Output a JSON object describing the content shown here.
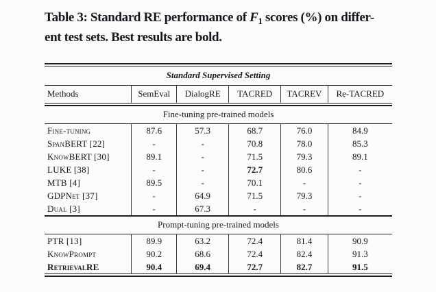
{
  "caption": {
    "line1_prefix": "Table 3: Standard RE performance of ",
    "f_symbol": "F",
    "f_subscript": "1",
    "line1_suffix": " scores (%) on differ-",
    "line2": "ent test sets. Best results are bold."
  },
  "table": {
    "setting_header": "Standard Supervised Setting",
    "columns": [
      "Methods",
      "SemEval",
      "DialogRE",
      "TACRED",
      "TACREV",
      "Re-TACRED"
    ],
    "sections": [
      {
        "title": "Fine-tuning pre-trained models",
        "rows": [
          {
            "method": "Fine-tuning",
            "values": [
              "87.6",
              "57.3",
              "68.7",
              "76.0",
              "84.9"
            ],
            "bold_values": [],
            "bold_method": false
          },
          {
            "method": "SpanBERT [22]",
            "values": [
              "-",
              "-",
              "70.8",
              "78.0",
              "85.3"
            ],
            "bold_values": [],
            "bold_method": false
          },
          {
            "method": "KnowBERT [30]",
            "values": [
              "89.1",
              "-",
              "71.5",
              "79.3",
              "89.1"
            ],
            "bold_values": [],
            "bold_method": false
          },
          {
            "method": "LUKE [38]",
            "values": [
              "-",
              "-",
              "72.7",
              "80.6",
              "-"
            ],
            "bold_values": [
              2
            ],
            "bold_method": false
          },
          {
            "method": "MTB [4]",
            "values": [
              "89.5",
              "-",
              "70.1",
              "-",
              "-"
            ],
            "bold_values": [],
            "bold_method": false
          },
          {
            "method": "GDPNet [37]",
            "values": [
              "-",
              "64.9",
              "71.5",
              "79.3",
              "-"
            ],
            "bold_values": [],
            "bold_method": false
          },
          {
            "method": "Dual [3]",
            "values": [
              "-",
              "67.3",
              "-",
              "-",
              "-"
            ],
            "bold_values": [],
            "bold_method": false
          }
        ]
      },
      {
        "title": "Prompt-tuning pre-trained models",
        "rows": [
          {
            "method": "PTR [13]",
            "values": [
              "89.9",
              "63.2",
              "72.4",
              "81.4",
              "90.9"
            ],
            "bold_values": [],
            "bold_method": false
          },
          {
            "method": "KnowPrompt",
            "values": [
              "90.2",
              "68.6",
              "72.4",
              "82.4",
              "91.3"
            ],
            "bold_values": [],
            "bold_method": false
          },
          {
            "method": "RetrievalRE",
            "values": [
              "90.4",
              "69.4",
              "72.7",
              "82.7",
              "91.5"
            ],
            "bold_values": [
              0,
              1,
              2,
              3,
              4
            ],
            "bold_method": true
          }
        ]
      }
    ]
  }
}
